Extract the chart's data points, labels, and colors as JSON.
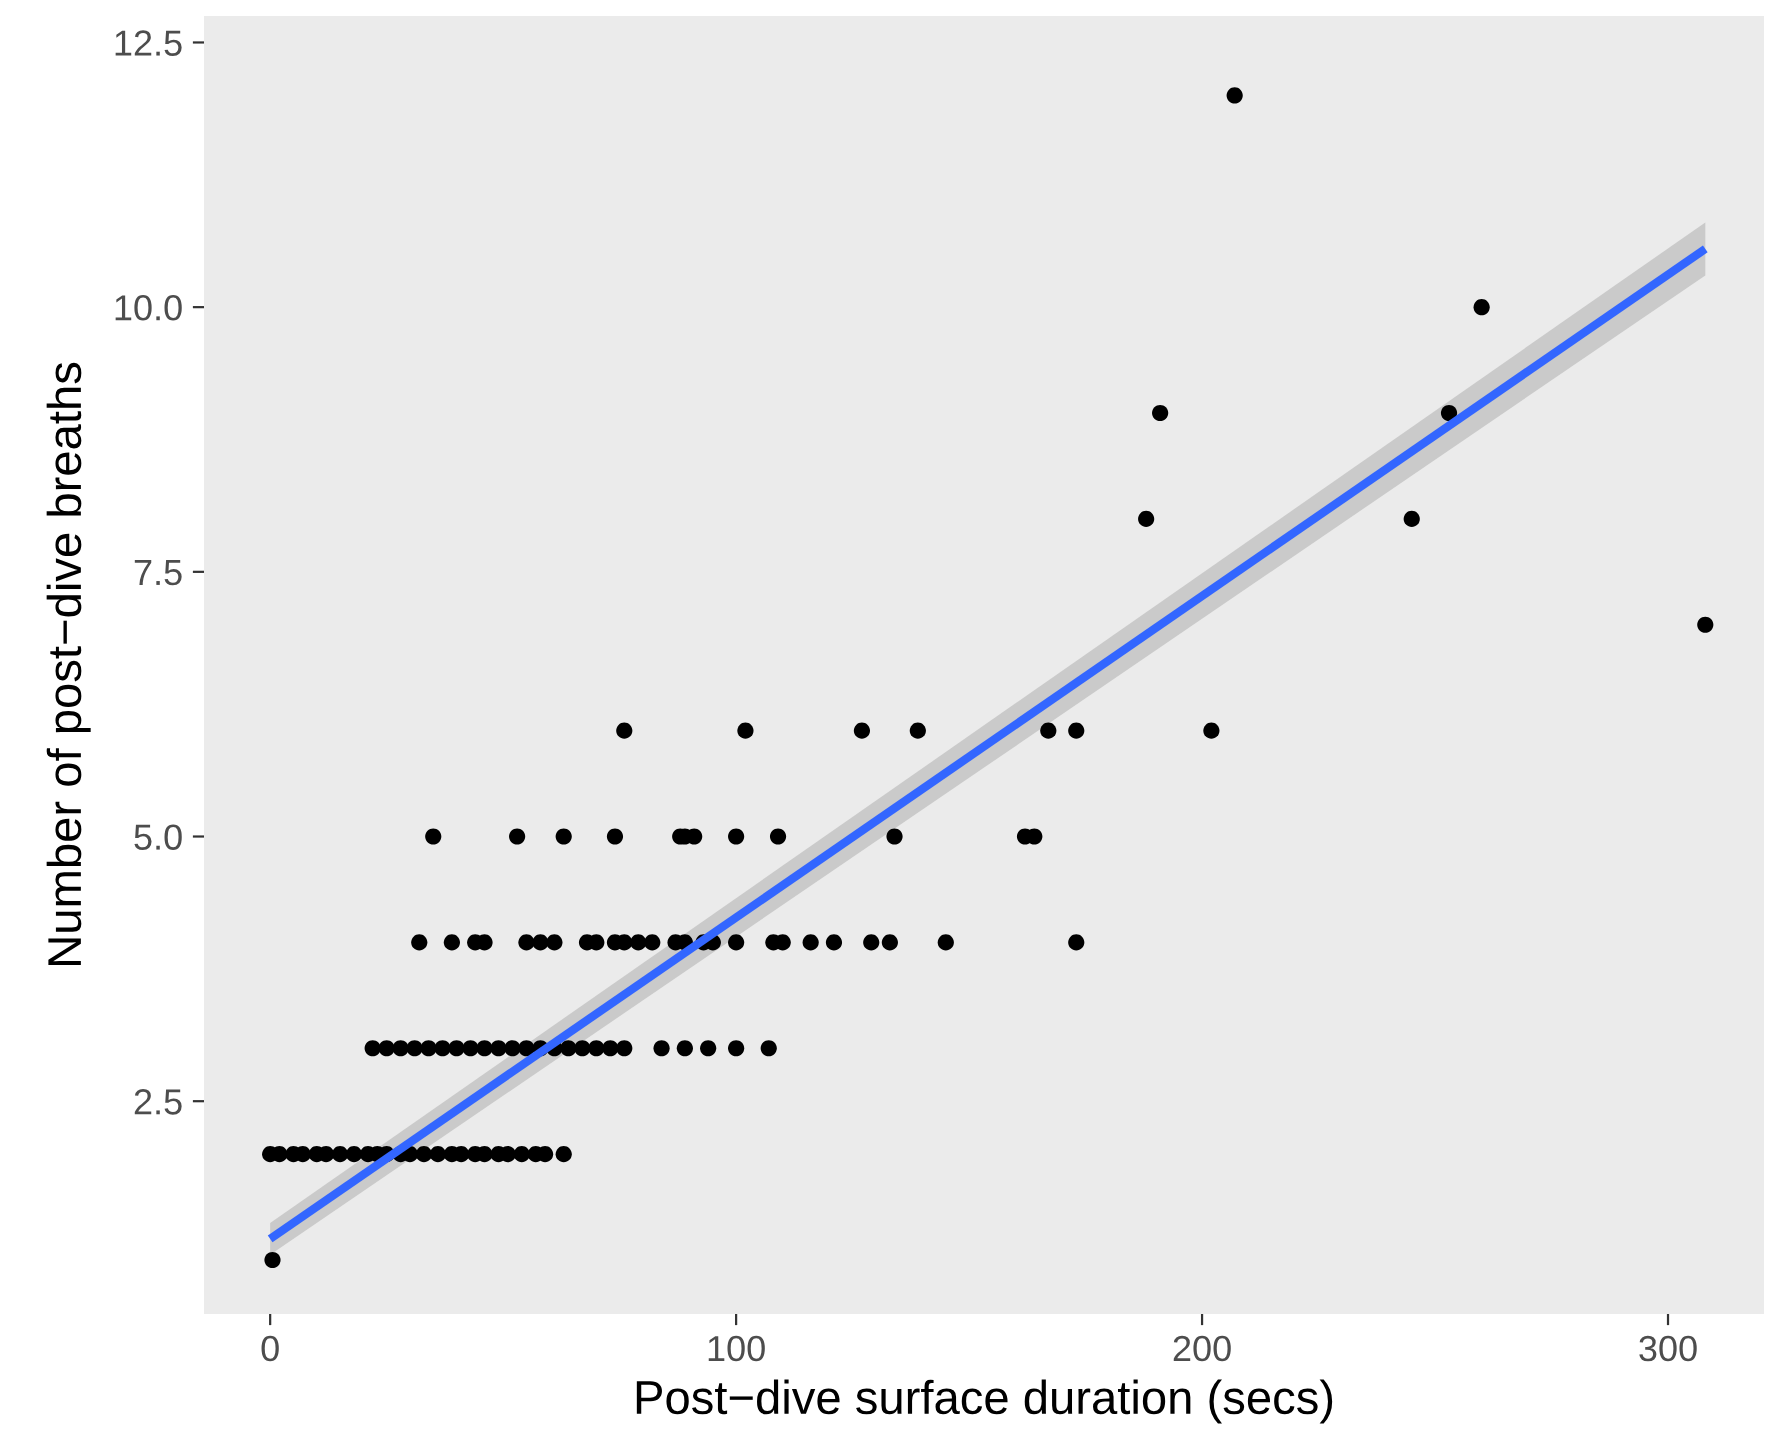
{
  "chart_data": {
    "type": "scatter",
    "xlabel": "Post−dive surface duration (secs)",
    "ylabel": "Number of post−dive breaths",
    "xlim": [
      -14.2,
      320.6
    ],
    "ylim": [
      0.49,
      12.75
    ],
    "xticks": [
      0,
      100,
      200,
      300
    ],
    "yticks": [
      2.5,
      {
        "value": 5,
        "label": "5.0"
      },
      7.5,
      {
        "value": 10,
        "label": "10.0"
      },
      12.5
    ],
    "grid": false,
    "series": [
      {
        "color": "#000000",
        "marker": "circle",
        "x": [
          0.5,
          0,
          2,
          5,
          7,
          10,
          12,
          15,
          18,
          21,
          23,
          25,
          28,
          30,
          33,
          36,
          39,
          41,
          44,
          46,
          49,
          51,
          54,
          57,
          59,
          63,
          22,
          25,
          28,
          31,
          34,
          37,
          40,
          43,
          46,
          49,
          52,
          55,
          58,
          61,
          64,
          67,
          70,
          73,
          76,
          84,
          89,
          94,
          100,
          107,
          32,
          39,
          44,
          46,
          55,
          58,
          61,
          68,
          70,
          74,
          76,
          79,
          82,
          87,
          89,
          93,
          95,
          100,
          108,
          110,
          116,
          121,
          129,
          133,
          145,
          173,
          35,
          53,
          63,
          74,
          88,
          89,
          91,
          100,
          109,
          134,
          162,
          164,
          76,
          102,
          127,
          139,
          167,
          173,
          188,
          191,
          207,
          202,
          245,
          253,
          260,
          308
        ],
        "values": [
          1,
          2,
          2,
          2,
          2,
          2,
          2,
          2,
          2,
          2,
          2,
          2,
          2,
          2,
          2,
          2,
          2,
          2,
          2,
          2,
          2,
          2,
          2,
          2,
          2,
          2,
          3,
          3,
          3,
          3,
          3,
          3,
          3,
          3,
          3,
          3,
          3,
          3,
          3,
          3,
          3,
          3,
          3,
          3,
          3,
          3,
          3,
          3,
          3,
          3,
          4,
          4,
          4,
          4,
          4,
          4,
          4,
          4,
          4,
          4,
          4,
          4,
          4,
          4,
          4,
          4,
          4,
          4,
          4,
          4,
          4,
          4,
          4,
          4,
          4,
          4,
          5,
          5,
          5,
          5,
          5,
          5,
          5,
          5,
          5,
          5,
          5,
          5,
          6,
          6,
          6,
          6,
          6,
          6,
          8,
          9,
          12,
          6,
          8,
          9,
          10,
          7
        ]
      },
      {
        "type": "line",
        "marker": "none",
        "color": "#3366ff",
        "x": [
          0,
          308
        ],
        "values": [
          1.2,
          10.55
        ],
        "lower": [
          1.05,
          10.3
        ],
        "upper": [
          1.35,
          10.8
        ]
      }
    ]
  }
}
